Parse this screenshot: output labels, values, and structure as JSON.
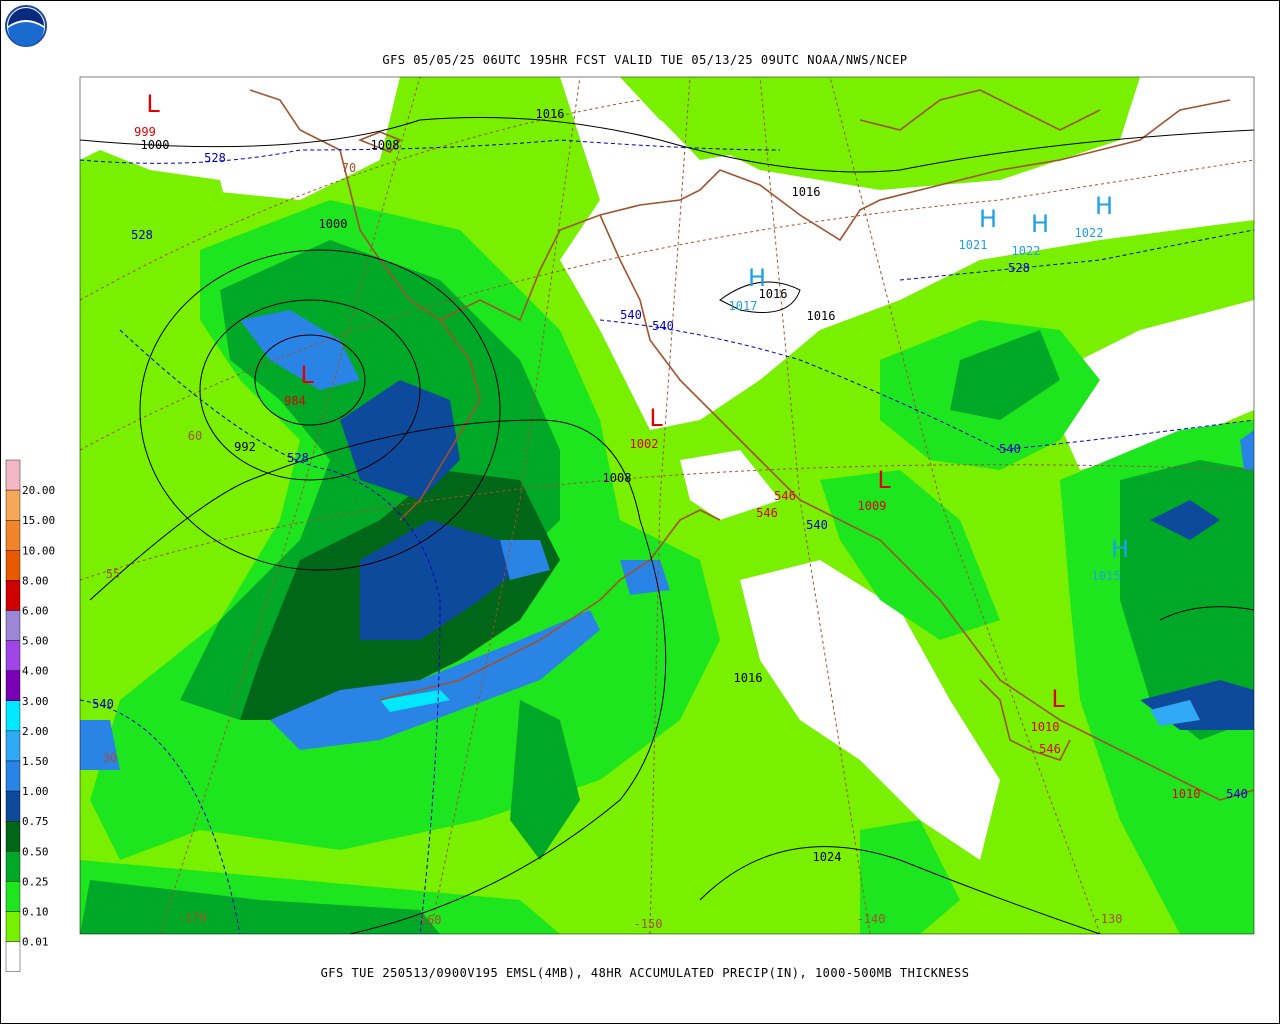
{
  "header": {
    "title": "GFS 05/05/25 06UTC 195HR FCST VALID TUE 05/13/25 09UTC NOAA/NWS/NCEP"
  },
  "footer": {
    "caption": "GFS TUE 250513/0900V195 EMSL(4MB), 48HR ACCUMULATED PRECIP(IN), 1000-500MB THICKNESS"
  },
  "legend": {
    "labels": [
      "20.00",
      "15.00",
      "10.00",
      "8.00",
      "6.00",
      "5.00",
      "4.00",
      "3.00",
      "2.00",
      "1.50",
      "1.00",
      "0.75",
      "0.50",
      "0.25",
      "0.10",
      "0.01"
    ],
    "colors": [
      "#f4b8c4",
      "#f5a857",
      "#f08428",
      "#e85a00",
      "#d00000",
      "#9c86d6",
      "#a046e6",
      "#7a00b4",
      "#00e8ff",
      "#30aaf4",
      "#2a84e6",
      "#0e4a9c",
      "#006618",
      "#00a828",
      "#1ee61e",
      "#78f000",
      "#ffffff"
    ]
  },
  "map": {
    "labels": [
      {
        "text": "L",
        "color": "#e00000"
      },
      {
        "text": "999",
        "color": "#e00000"
      },
      {
        "text": "1000",
        "color": "#000000"
      },
      {
        "text": "528",
        "color": "#0000c8"
      },
      {
        "text": "1008",
        "color": "#000000"
      },
      {
        "text": "1016",
        "color": "#000000"
      },
      {
        "text": "1016",
        "color": "#000000"
      },
      {
        "text": "70",
        "color": "#a0522d"
      },
      {
        "text": "528",
        "color": "#0000c8"
      },
      {
        "text": "1000",
        "color": "#000000"
      },
      {
        "text": "H",
        "color": "#1ea0e6"
      },
      {
        "text": "1021",
        "color": "#1ea0e6"
      },
      {
        "text": "H",
        "color": "#1ea0e6"
      },
      {
        "text": "1022",
        "color": "#1ea0e6"
      },
      {
        "text": "H",
        "color": "#1ea0e6"
      },
      {
        "text": "1022",
        "color": "#1ea0e6"
      },
      {
        "text": "528",
        "color": "#0000c8"
      },
      {
        "text": "H",
        "color": "#1ea0e6"
      },
      {
        "text": "1017",
        "color": "#1ea0e6"
      },
      {
        "text": "1016",
        "color": "#000000"
      },
      {
        "text": "1016",
        "color": "#000000"
      },
      {
        "text": "540",
        "color": "#0000c8"
      },
      {
        "text": "540",
        "color": "#0000c8"
      },
      {
        "text": "L",
        "color": "#e00000"
      },
      {
        "text": "984",
        "color": "#e00000"
      },
      {
        "text": "60",
        "color": "#a0522d"
      },
      {
        "text": "992",
        "color": "#000000"
      },
      {
        "text": "528",
        "color": "#0000c8"
      },
      {
        "text": "L",
        "color": "#e00000"
      },
      {
        "text": "1002",
        "color": "#e00000"
      },
      {
        "text": "1008",
        "color": "#000000"
      },
      {
        "text": "L",
        "color": "#e00000"
      },
      {
        "text": "1009",
        "color": "#e00000"
      },
      {
        "text": "546",
        "color": "#e00000"
      },
      {
        "text": "546",
        "color": "#e00000"
      },
      {
        "text": "540",
        "color": "#0000c8"
      },
      {
        "text": "540",
        "color": "#0000c8"
      },
      {
        "text": "H",
        "color": "#1ea0e6"
      },
      {
        "text": "1015",
        "color": "#1ea0e6"
      },
      {
        "text": "55",
        "color": "#a0522d"
      },
      {
        "text": "1016",
        "color": "#000000"
      },
      {
        "text": "540",
        "color": "#0000c8"
      },
      {
        "text": "30",
        "color": "#a0522d"
      },
      {
        "text": "L",
        "color": "#e00000"
      },
      {
        "text": "1010",
        "color": "#e00000"
      },
      {
        "text": "546",
        "color": "#e00000"
      },
      {
        "text": "1010",
        "color": "#e00000"
      },
      {
        "text": "540",
        "color": "#0000c8"
      },
      {
        "text": "1024",
        "color": "#000000"
      },
      {
        "text": "-170",
        "color": "#a0522d"
      },
      {
        "text": "-160",
        "color": "#a0522d"
      },
      {
        "text": "-150",
        "color": "#a0522d"
      },
      {
        "text": "-140",
        "color": "#a0522d"
      },
      {
        "text": "-130",
        "color": "#a0522d"
      }
    ]
  }
}
